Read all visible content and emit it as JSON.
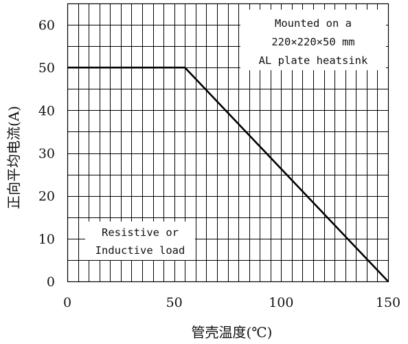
{
  "chart_data": {
    "type": "line",
    "title": "",
    "xlabel": "管壳温度(℃)",
    "ylabel": "正向平均电流(A)",
    "xlim": [
      0,
      150
    ],
    "ylim": [
      0,
      65
    ],
    "x_ticks": [
      0,
      50,
      100,
      150
    ],
    "y_ticks": [
      0,
      10,
      20,
      30,
      40,
      50,
      60
    ],
    "x_minor_step": 5,
    "y_minor_step": 5,
    "grid": true,
    "series": [
      {
        "x": [
          0,
          55,
          150
        ],
        "y": [
          50,
          50,
          0
        ]
      }
    ],
    "annotations": {
      "heatsink": [
        "Mounted on a",
        "220×220×50 mm",
        "AL plate heatsink"
      ],
      "load": [
        "Resistive or",
        "Inductive load"
      ]
    }
  }
}
